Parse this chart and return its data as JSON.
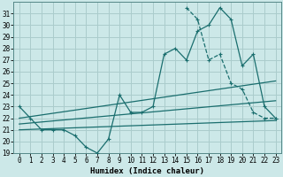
{
  "xlabel": "Humidex (Indice chaleur)",
  "bg_color": "#cce8e8",
  "grid_color": "#aacccc",
  "line_color": "#1a6e6e",
  "xlim": [
    -0.5,
    23.5
  ],
  "ylim": [
    19,
    32
  ],
  "yticks": [
    19,
    20,
    21,
    22,
    23,
    24,
    25,
    26,
    27,
    28,
    29,
    30,
    31
  ],
  "xticks": [
    0,
    1,
    2,
    3,
    4,
    5,
    6,
    7,
    8,
    9,
    10,
    11,
    12,
    13,
    14,
    15,
    16,
    17,
    18,
    19,
    20,
    21,
    22,
    23
  ],
  "main_x": [
    0,
    1,
    2,
    3,
    4,
    5,
    6,
    7,
    8,
    9,
    10,
    11,
    12,
    13,
    14,
    15,
    16,
    17,
    18,
    19,
    20,
    21,
    22,
    23
  ],
  "main_y": [
    23.0,
    22.0,
    21.0,
    21.0,
    21.0,
    20.5,
    19.5,
    19.0,
    20.2,
    24.0,
    22.5,
    22.5,
    23.0,
    27.5,
    28.0,
    27.0,
    29.5,
    30.0,
    31.5,
    30.5,
    26.5,
    27.5,
    23.0,
    22.0
  ],
  "dash_x": [
    15,
    16,
    17,
    18,
    19,
    20,
    21,
    22,
    23
  ],
  "dash_y": [
    31.5,
    30.5,
    27.0,
    27.5,
    25.0,
    24.5,
    22.5,
    22.0,
    22.0
  ],
  "line1_x": [
    0,
    23
  ],
  "line1_y": [
    21.0,
    21.8
  ],
  "line2_x": [
    0,
    23
  ],
  "line2_y": [
    21.5,
    23.5
  ],
  "line3_x": [
    0,
    23
  ],
  "line3_y": [
    22.0,
    25.2
  ]
}
